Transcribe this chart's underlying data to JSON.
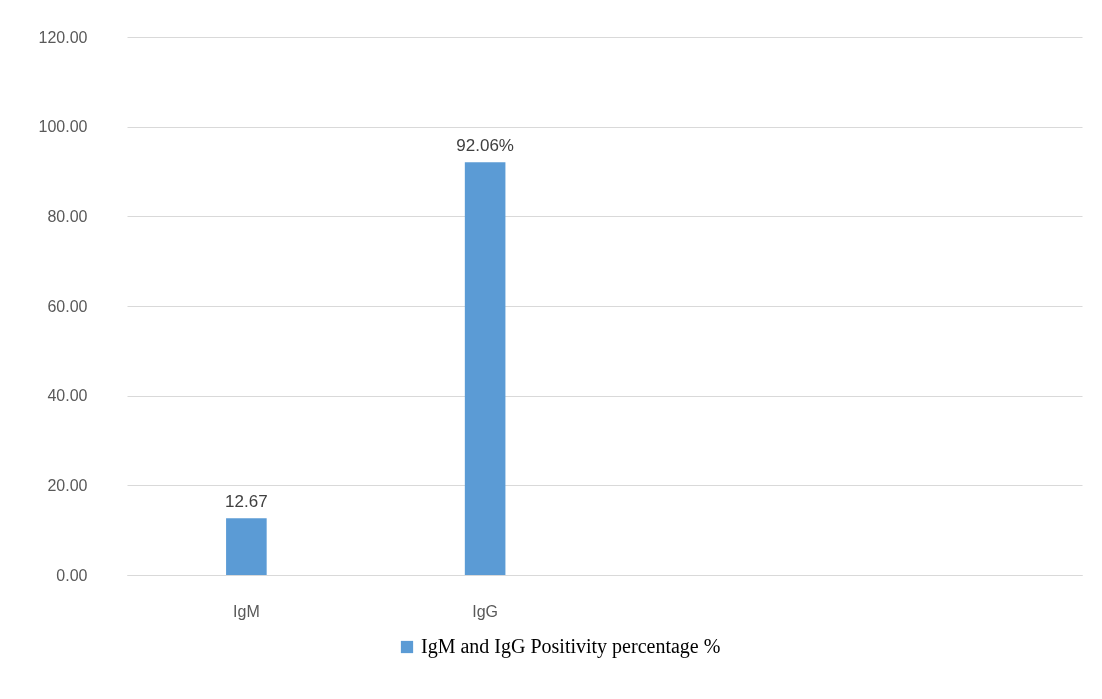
{
  "chart_data": {
    "type": "bar",
    "categories": [
      "IgM",
      "IgG",
      null,
      null
    ],
    "series": [
      {
        "name": "IgM and IgG Positivity percentage %",
        "color": "#5b9bd5",
        "values": [
          12.67,
          92.06,
          null,
          null
        ],
        "value_labels": [
          "12.67",
          "92.06%",
          null,
          null
        ]
      }
    ],
    "ylim": [
      0,
      120
    ],
    "yticks": [
      {
        "value": 0,
        "label": "0.00"
      },
      {
        "value": 20,
        "label": "20.00"
      },
      {
        "value": 40,
        "label": "40.00"
      },
      {
        "value": 60,
        "label": "60.00"
      },
      {
        "value": 80,
        "label": "80.00"
      },
      {
        "value": 100,
        "label": "100.00"
      },
      {
        "value": 120,
        "label": "120.00"
      }
    ],
    "grid": "y",
    "legend": "bottom"
  }
}
